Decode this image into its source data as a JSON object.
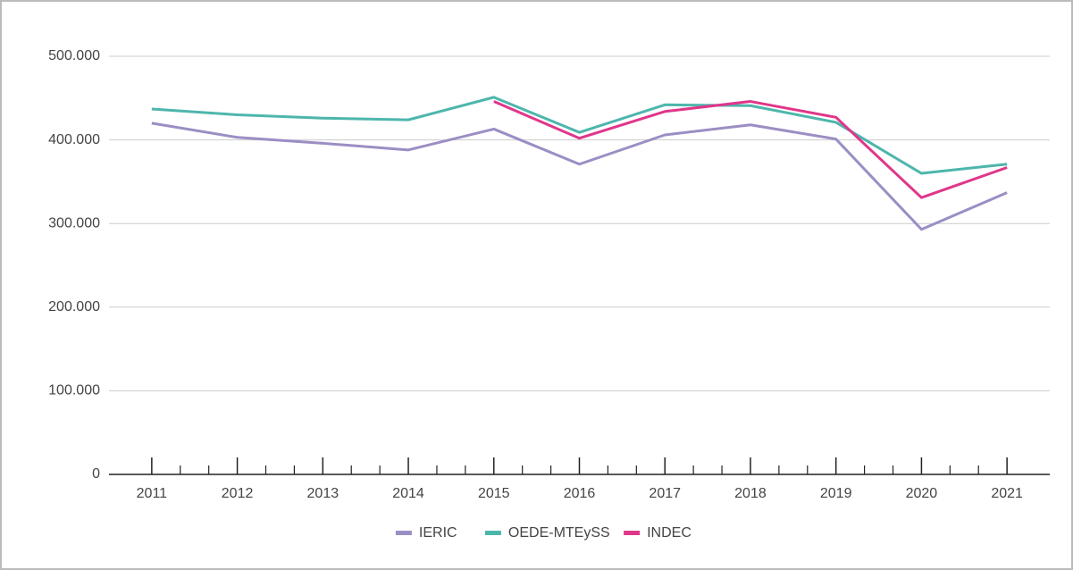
{
  "chart_data": {
    "type": "line",
    "categories": [
      "2011",
      "2012",
      "2013",
      "2014",
      "2015",
      "2016",
      "2017",
      "2018",
      "2019",
      "2020",
      "2021"
    ],
    "series": [
      {
        "name": "IERIC",
        "color": "#9b8ec4",
        "values": [
          420000,
          403000,
          396000,
          388000,
          413000,
          371000,
          406000,
          418000,
          401000,
          293000,
          337000
        ]
      },
      {
        "name": "OEDE-MTEySS",
        "color": "#4db6ac",
        "values": [
          437000,
          430000,
          426000,
          424000,
          451000,
          409000,
          442000,
          441000,
          421000,
          360000,
          371000
        ]
      },
      {
        "name": "INDEC",
        "color": "#e0368a",
        "values": [
          null,
          null,
          null,
          null,
          446000,
          402000,
          434000,
          446000,
          427000,
          331000,
          367000
        ]
      }
    ],
    "ylim": [
      0,
      500000
    ],
    "yticks": [
      0,
      {
        "value": 100000,
        "label": "100.000"
      },
      {
        "value": 200000,
        "label": "200.000"
      },
      {
        "value": 300000,
        "label": "300.000"
      },
      {
        "value": 400000,
        "label": "400.000"
      },
      {
        "value": 500000,
        "label": "500.000"
      }
    ],
    "grid": true,
    "legend": "bottom"
  }
}
